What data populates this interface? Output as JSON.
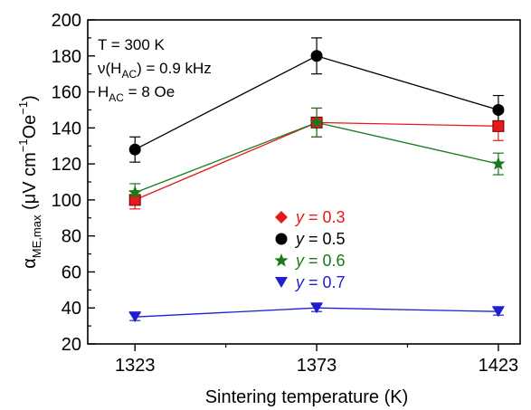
{
  "chart_data": {
    "type": "line",
    "title": "",
    "xlabel": "Sintering temperature (K)",
    "ylabel": {
      "symbol": "α",
      "subscript": "ME,max",
      "units_open": " (μV cm",
      "exp1": "−1",
      "units_mid": "Oe",
      "exp2": "−1",
      "units_close": ")"
    },
    "x": [
      1323,
      1373,
      1423
    ],
    "xticks": [
      "1323",
      "1373",
      "1423"
    ],
    "xlim": [
      1310,
      1429
    ],
    "ylim": [
      20,
      200
    ],
    "yticks": [
      20,
      40,
      60,
      80,
      100,
      120,
      140,
      160,
      180,
      200
    ],
    "yminor_step": 10,
    "conditions": [
      {
        "main": "T = 300 K",
        "sub": "",
        "tail": ""
      },
      {
        "main": "ν(H",
        "sub": "AC",
        "tail": ") = 0.9 kHz"
      },
      {
        "main": "H",
        "sub": "AC",
        "tail": " = 8 Oe"
      }
    ],
    "series": [
      {
        "legend_var": "y",
        "legend_val": " = 0.3",
        "color": "#e8191c",
        "marker": "square",
        "legend_marker": "diamond",
        "values": [
          100,
          143,
          141
        ],
        "errors": [
          5,
          8,
          8
        ]
      },
      {
        "legend_var": "y",
        "legend_val": " = 0.5",
        "color": "#000000",
        "marker": "circle",
        "legend_marker": "circle",
        "values": [
          128,
          180,
          150
        ],
        "errors": [
          7,
          10,
          8
        ]
      },
      {
        "legend_var": "y",
        "legend_val": " = 0.6",
        "color": "#1a7a1a",
        "marker": "star",
        "legend_marker": "star",
        "values": [
          104,
          143,
          120
        ],
        "errors": [
          5,
          8,
          6
        ]
      },
      {
        "legend_var": "y",
        "legend_val": " = 0.7",
        "color": "#1f1fd0",
        "marker": "triangle-down",
        "legend_marker": "triangle-down",
        "values": [
          35,
          40,
          38
        ],
        "errors": [
          2,
          2,
          2
        ]
      }
    ],
    "legend_position": "center"
  }
}
